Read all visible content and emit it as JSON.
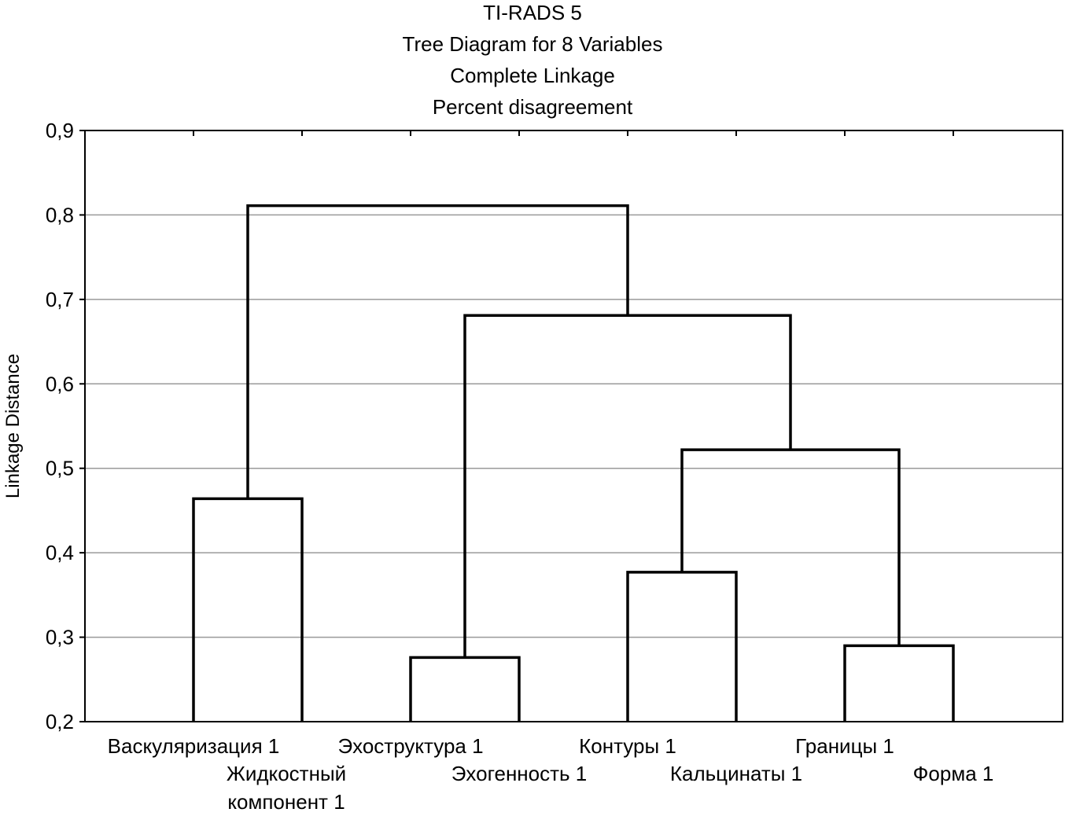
{
  "chart_data": {
    "type": "dendrogram",
    "title_lines": [
      "TI-RADS 5",
      "Tree Diagram for 8 Variables",
      "Complete Linkage",
      "Percent disagreement"
    ],
    "xlabel": "",
    "ylabel": "Linkage Distance",
    "ylim": [
      0.2,
      0.9
    ],
    "yticks": [
      0.2,
      0.3,
      0.4,
      0.5,
      0.6,
      0.7,
      0.8,
      0.9
    ],
    "ytick_labels": [
      "0,2",
      "0,3",
      "0,4",
      "0,5",
      "0,6",
      "0,7",
      "0,8",
      "0,9"
    ],
    "grid": true,
    "leaves": [
      {
        "lines": [
          "Васкуляризация 1"
        ]
      },
      {
        "lines": [
          "Жидкостный",
          "компонент 1"
        ]
      },
      {
        "lines": [
          "Эхоструктура 1"
        ]
      },
      {
        "lines": [
          "Эхогенность 1"
        ]
      },
      {
        "lines": [
          "Контуры  1"
        ]
      },
      {
        "lines": [
          "Кальцинаты 1"
        ]
      },
      {
        "lines": [
          "Границы 1"
        ]
      },
      {
        "lines": [
          "Форма 1"
        ]
      }
    ],
    "merges": [
      {
        "a": "L0",
        "b": "L1",
        "height": 0.464
      },
      {
        "a": "L2",
        "b": "L3",
        "height": 0.276
      },
      {
        "a": "L4",
        "b": "L5",
        "height": 0.377
      },
      {
        "a": "L6",
        "b": "L7",
        "height": 0.29
      },
      {
        "a": "M2",
        "b": "M3",
        "height": 0.522
      },
      {
        "a": "M1",
        "b": "M4",
        "height": 0.681
      },
      {
        "a": "M0",
        "b": "M5",
        "height": 0.811
      }
    ]
  }
}
